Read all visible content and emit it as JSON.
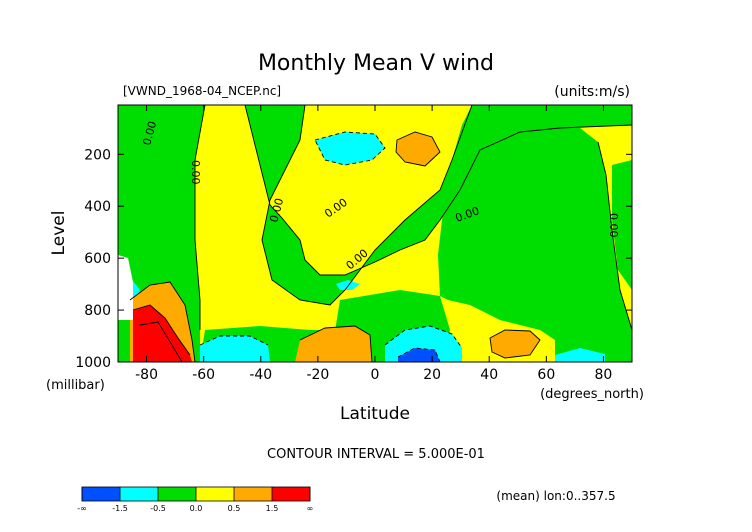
{
  "chart_data": {
    "type": "heatmap",
    "title": "Monthly Mean V wind",
    "file_label": "[VWND_1968-04_NCEP.nc]",
    "units_label": "(units:m/s)",
    "xlabel": "Latitude",
    "ylabel": "Level",
    "x_unit": "(degrees_north)",
    "y_unit": "(millibar)",
    "xlim": [
      -90,
      90
    ],
    "ylim": [
      1000,
      10
    ],
    "x_ticks": [
      -80,
      -60,
      -40,
      -20,
      0,
      20,
      40,
      60,
      80
    ],
    "y_ticks": [
      200,
      400,
      600,
      800,
      1000
    ],
    "contour_interval_text": "CONTOUR INTERVAL = 5.000E-01",
    "footer_text": "(mean) lon:0..357.5",
    "contour_labels": [
      "0.00",
      "0.00",
      "0.00",
      "0.00",
      "0.00",
      "0.00",
      "0.00"
    ],
    "colorbar": {
      "labels": [
        "-∞",
        "-1.5",
        "-0.5",
        "0.0",
        "0.5",
        "1.5",
        "∞"
      ],
      "colors": [
        "#0050ff",
        "#00ffff",
        "#00dd00",
        "#ffff00",
        "#ffaa00",
        "#ff0000"
      ]
    }
  }
}
